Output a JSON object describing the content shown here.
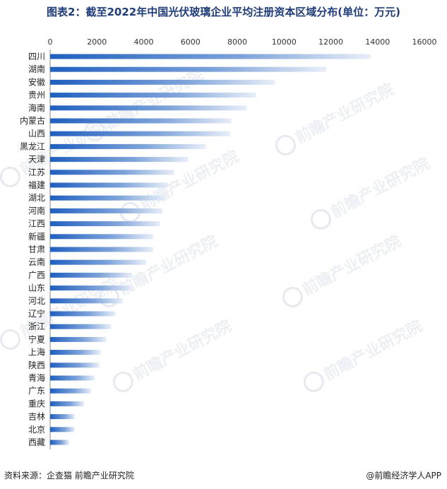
{
  "chart_data": {
    "type": "bar",
    "orientation": "horizontal",
    "title": "图表2：截至2022年中国光伏玻璃企业平均注册资本区域分布(单位：万元)",
    "xlim": [
      0,
      16000
    ],
    "x_ticks": [
      "0",
      "2000",
      "4000",
      "6000",
      "8000",
      "10000",
      "12000",
      "14000",
      "16000"
    ],
    "axis_position": "top",
    "grid": false,
    "categories": [
      "四川",
      "湖南",
      "安徽",
      "贵州",
      "海南",
      "内蒙古",
      "山西",
      "黑龙江",
      "天津",
      "江苏",
      "福建",
      "湖北",
      "河南",
      "江西",
      "新疆",
      "甘肃",
      "云南",
      "广西",
      "山东",
      "河北",
      "辽宁",
      "浙江",
      "宁夏",
      "上海",
      "陕西",
      "青海",
      "广东",
      "重庆",
      "吉林",
      "北京",
      "西藏"
    ],
    "values": [
      13700,
      11800,
      9600,
      8800,
      8400,
      7750,
      7700,
      6650,
      5900,
      5300,
      5050,
      4900,
      4800,
      4700,
      4400,
      4400,
      4100,
      3500,
      3500,
      3100,
      2800,
      2600,
      2400,
      2150,
      2100,
      1900,
      1750,
      1450,
      1050,
      1050,
      800
    ],
    "bar_color_start": "#1f5fbf",
    "bar_color_end": "#e8eef8"
  },
  "footer": {
    "source": "资料来源：企查猫 前瞻产业研究院",
    "brand": "@前瞻经济学人APP"
  },
  "watermark": {
    "text": "前瞻产业研究院"
  }
}
